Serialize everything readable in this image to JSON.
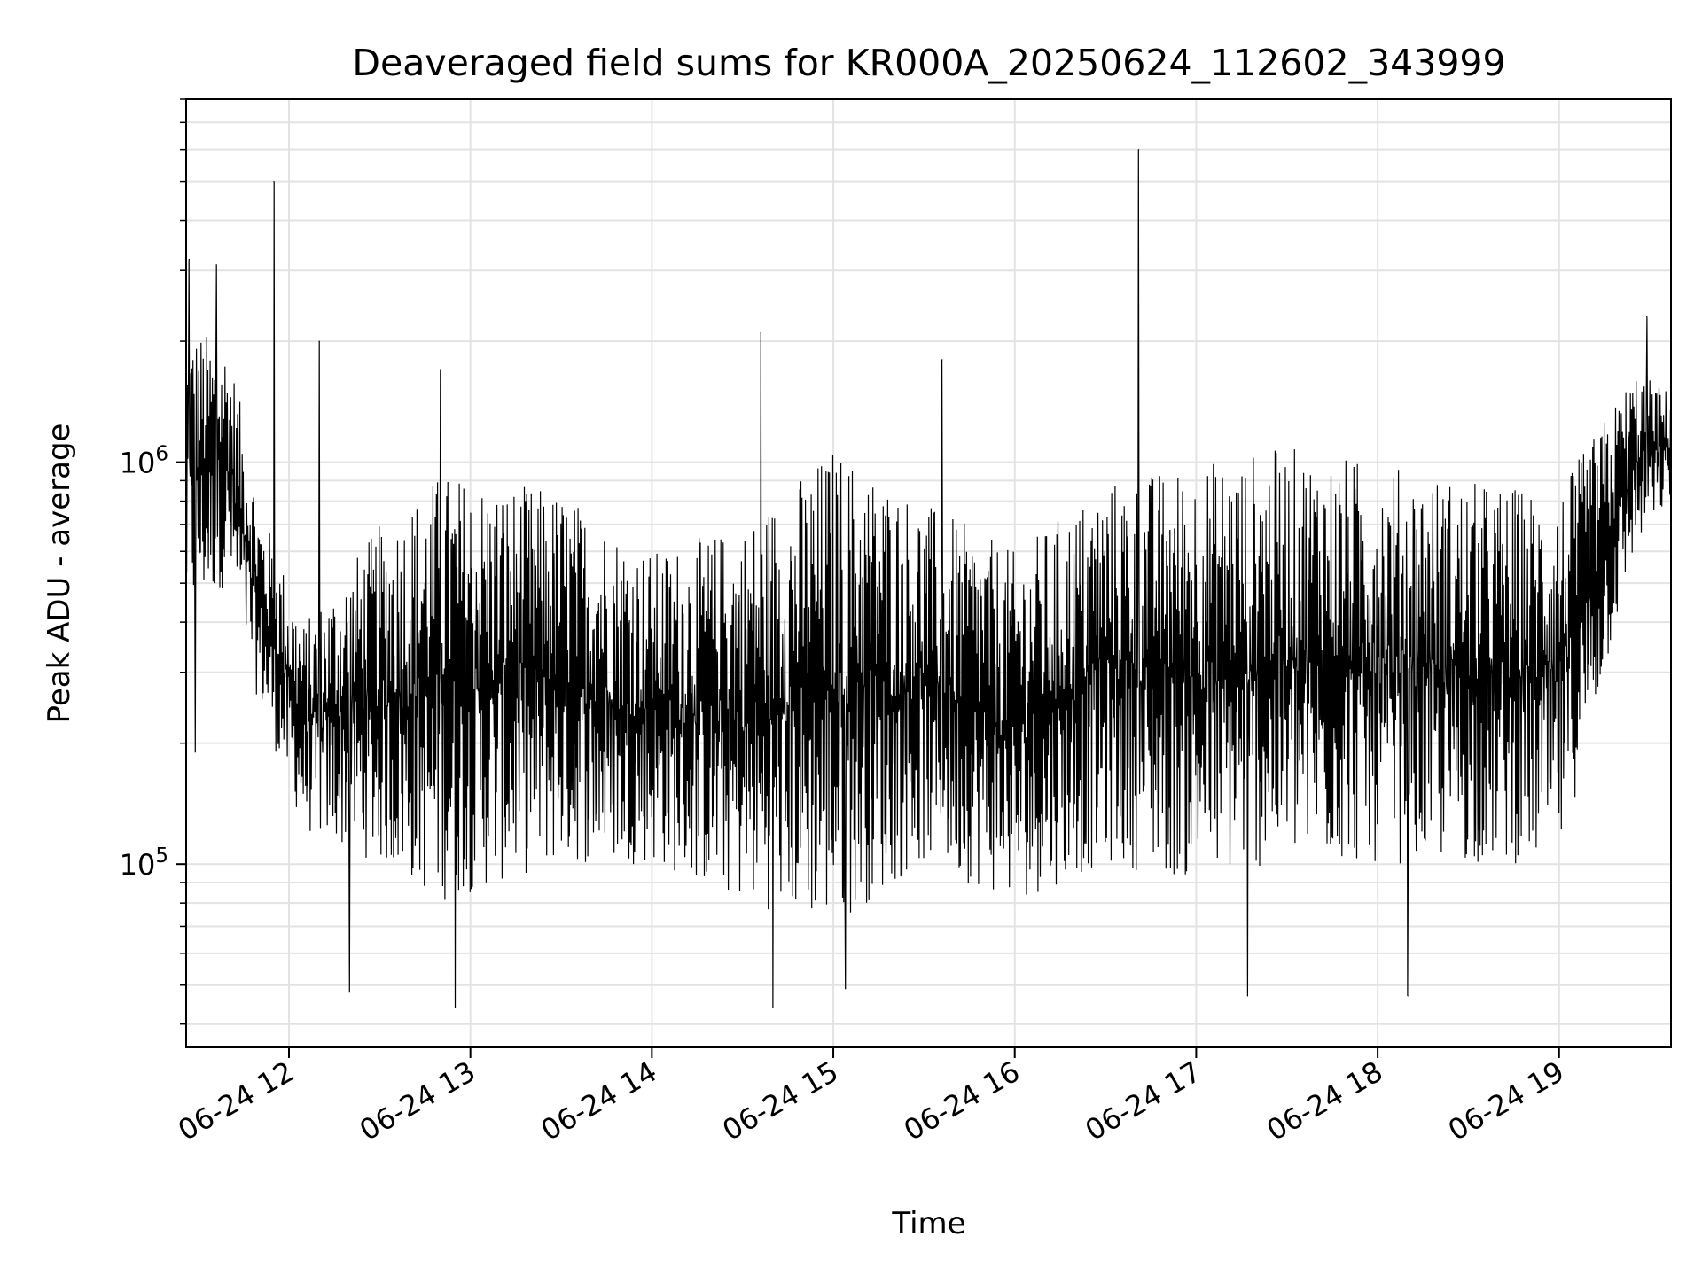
{
  "chart_data": {
    "type": "line",
    "title": "Deaveraged field sums for KR000A_20250624_112602_343999",
    "xlabel": "Time",
    "ylabel": "Peak ADU - average",
    "x_start": "2025-06-24 11:26",
    "x_end": "2025-06-24 19:37",
    "xlim": [
      "2025-06-24 11:26",
      "2025-06-24 19:37"
    ],
    "x_ticks": [
      {
        "value": "2025-06-24 12:00",
        "label": "06-24 12"
      },
      {
        "value": "2025-06-24 13:00",
        "label": "06-24 13"
      },
      {
        "value": "2025-06-24 14:00",
        "label": "06-24 14"
      },
      {
        "value": "2025-06-24 15:00",
        "label": "06-24 15"
      },
      {
        "value": "2025-06-24 16:00",
        "label": "06-24 16"
      },
      {
        "value": "2025-06-24 17:00",
        "label": "06-24 17"
      },
      {
        "value": "2025-06-24 18:00",
        "label": "06-24 18"
      },
      {
        "value": "2025-06-24 19:00",
        "label": "06-24 19"
      }
    ],
    "y_scale": "log",
    "ylim": [
      35000,
      8000000
    ],
    "y_ticks": [
      {
        "value": 100000,
        "base": "10",
        "exp": "5"
      },
      {
        "value": 1000000,
        "base": "10",
        "exp": "6"
      }
    ],
    "grid": true,
    "line_color": "#000000",
    "envelope": [
      {
        "t": "2025-06-24 11:26",
        "low": 400000,
        "high": 2200000
      },
      {
        "t": "2025-06-24 11:40",
        "low": 500000,
        "high": 2000000
      },
      {
        "t": "2025-06-24 11:50",
        "low": 250000,
        "high": 800000
      },
      {
        "t": "2025-06-24 12:05",
        "low": 120000,
        "high": 400000
      },
      {
        "t": "2025-06-24 12:30",
        "low": 100000,
        "high": 700000
      },
      {
        "t": "2025-06-24 12:50",
        "low": 80000,
        "high": 950000
      },
      {
        "t": "2025-06-24 13:30",
        "low": 100000,
        "high": 850000
      },
      {
        "t": "2025-06-24 14:00",
        "low": 100000,
        "high": 600000
      },
      {
        "t": "2025-06-24 14:30",
        "low": 80000,
        "high": 700000
      },
      {
        "t": "2025-06-24 15:00",
        "low": 70000,
        "high": 1100000
      },
      {
        "t": "2025-06-24 15:30",
        "low": 100000,
        "high": 800000
      },
      {
        "t": "2025-06-24 16:00",
        "low": 80000,
        "high": 600000
      },
      {
        "t": "2025-06-24 16:30",
        "low": 100000,
        "high": 900000
      },
      {
        "t": "2025-06-24 17:00",
        "low": 90000,
        "high": 1000000
      },
      {
        "t": "2025-06-24 17:30",
        "low": 100000,
        "high": 1100000
      },
      {
        "t": "2025-06-24 18:00",
        "low": 100000,
        "high": 1000000
      },
      {
        "t": "2025-06-24 18:30",
        "low": 100000,
        "high": 900000
      },
      {
        "t": "2025-06-24 19:00",
        "low": 100000,
        "high": 850000
      },
      {
        "t": "2025-06-24 19:25",
        "low": 600000,
        "high": 1700000
      },
      {
        "t": "2025-06-24 19:37",
        "low": 800000,
        "high": 1500000
      }
    ],
    "spikes": [
      {
        "t": "2025-06-24 11:27",
        "value": 3200000
      },
      {
        "t": "2025-06-24 11:36",
        "value": 3100000
      },
      {
        "t": "2025-06-24 11:55",
        "value": 5000000
      },
      {
        "t": "2025-06-24 12:10",
        "value": 2000000
      },
      {
        "t": "2025-06-24 12:50",
        "value": 1700000
      },
      {
        "t": "2025-06-24 14:36",
        "value": 2100000
      },
      {
        "t": "2025-06-24 15:36",
        "value": 1800000
      },
      {
        "t": "2025-06-24 16:41",
        "value": 6000000
      },
      {
        "t": "2025-06-24 19:29",
        "value": 2300000
      }
    ],
    "dips": [
      {
        "t": "2025-06-24 11:29",
        "value": 190000
      },
      {
        "t": "2025-06-24 12:20",
        "value": 48000
      },
      {
        "t": "2025-06-24 12:55",
        "value": 44000
      },
      {
        "t": "2025-06-24 14:40",
        "value": 44000
      },
      {
        "t": "2025-06-24 15:04",
        "value": 49000
      },
      {
        "t": "2025-06-24 17:17",
        "value": 47000
      },
      {
        "t": "2025-06-24 18:10",
        "value": 47000
      }
    ]
  }
}
